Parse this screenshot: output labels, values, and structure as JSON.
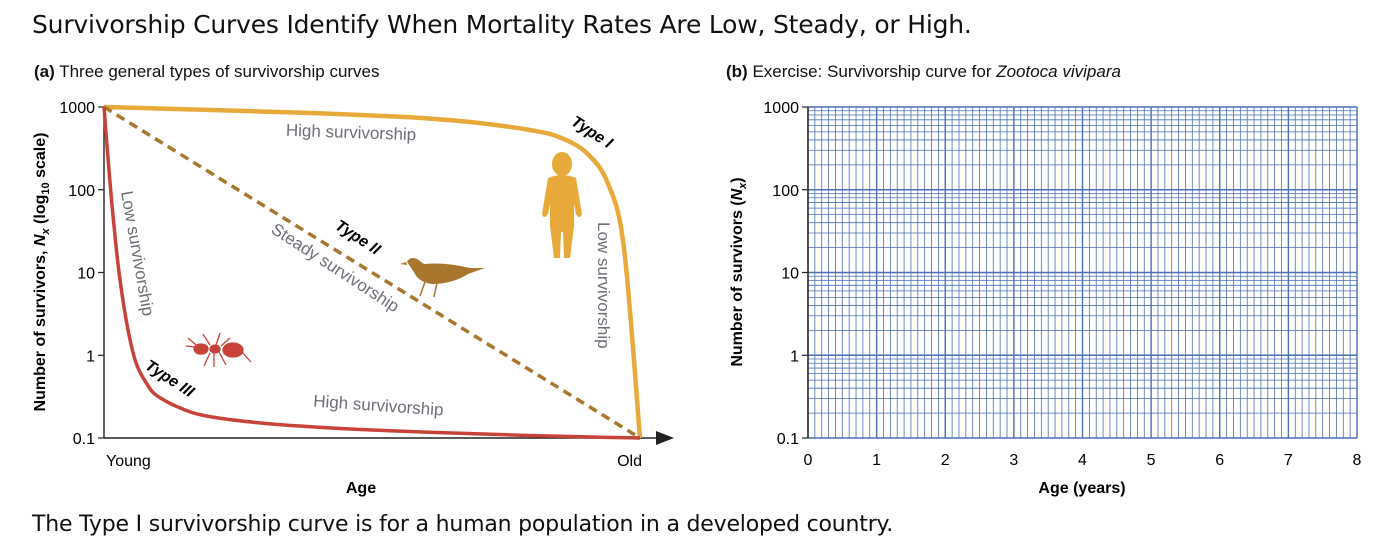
{
  "title": "Survivorship Curves Identify When Mortality Rates Are Low, Steady, or High.",
  "caption": "The Type I survivorship curve is for a human population in a developed country.",
  "colors": {
    "type_i": "#E8A93B",
    "type_ii": "#A8762C",
    "type_iii": "#C7433A",
    "grid": "#4A6FB5",
    "label_gray": "#6E6E78"
  },
  "icons": [
    "human-silhouette-icon",
    "bird-icon",
    "ant-icon"
  ],
  "chart_data": [
    {
      "type": "line",
      "panel_label": "(a)",
      "title": "Three general types of survivorship curves",
      "xlabel": "Age",
      "ylabel_main": "Number of survivors, ",
      "ylabel_symbol": "N",
      "ylabel_sub": "x",
      "ylabel_mid": " (log",
      "ylabel_base": "10",
      "ylabel_end": " scale)",
      "y_scale": "log",
      "ylim": [
        0.1,
        1000
      ],
      "yticks": [
        "1000",
        "100",
        "10",
        "1",
        "0.1"
      ],
      "yticks_values": [
        1000,
        100,
        10,
        1,
        0.1
      ],
      "x_tick_labels": [
        "Young",
        "Old"
      ],
      "xlim": [
        0,
        1
      ],
      "series": [
        {
          "name": "Type I",
          "x": [
            0,
            0.1,
            0.2,
            0.3,
            0.4,
            0.5,
            0.6,
            0.7,
            0.8,
            0.85,
            0.9,
            0.94,
            0.97,
            1.0
          ],
          "y": [
            1000,
            960,
            920,
            880,
            840,
            790,
            730,
            640,
            520,
            430,
            280,
            120,
            20,
            0.1
          ]
        },
        {
          "name": "Type II",
          "x": [
            0,
            0.25,
            0.5,
            0.75,
            1.0
          ],
          "y": [
            1000,
            100,
            10,
            1,
            0.1
          ]
        },
        {
          "name": "Type III",
          "x": [
            0,
            0.01,
            0.02,
            0.03,
            0.045,
            0.06,
            0.08,
            0.1,
            0.15,
            0.2,
            0.3,
            0.4,
            0.5,
            0.6,
            0.7,
            0.8,
            0.9,
            1.0
          ],
          "y": [
            1000,
            150,
            30,
            8,
            2,
            0.8,
            0.45,
            0.32,
            0.22,
            0.18,
            0.15,
            0.135,
            0.125,
            0.118,
            0.112,
            0.107,
            0.103,
            0.1
          ]
        }
      ],
      "annotations": {
        "type_i": "Type I",
        "type_ii": "Type II",
        "type_iii": "Type III",
        "high_survivorship_top": "High survivorship",
        "steady_survivorship": "Steady survivorship",
        "low_survivorship_left": "Low survivorship",
        "low_survivorship_right": "Low survivorship",
        "high_survivorship_bottom": "High survivorship"
      }
    },
    {
      "type": "line",
      "panel_label": "(b)",
      "title_prefix": "Exercise: Survivorship curve for ",
      "title_species": "Zootoca vivipara",
      "xlabel": "Age (years)",
      "ylabel_main": "Number of survivors (",
      "ylabel_symbol": "N",
      "ylabel_sub": "x",
      "ylabel_end": ")",
      "y_scale": "log",
      "ylim": [
        0.1,
        1000
      ],
      "yticks": [
        "1000",
        "100",
        "10",
        "1",
        "0.1"
      ],
      "yticks_values": [
        1000,
        100,
        10,
        1,
        0.1
      ],
      "xlim": [
        0,
        8
      ],
      "xticks": [
        "0",
        "1",
        "2",
        "3",
        "4",
        "5",
        "6",
        "7",
        "8"
      ],
      "grid": true,
      "series": []
    }
  ]
}
